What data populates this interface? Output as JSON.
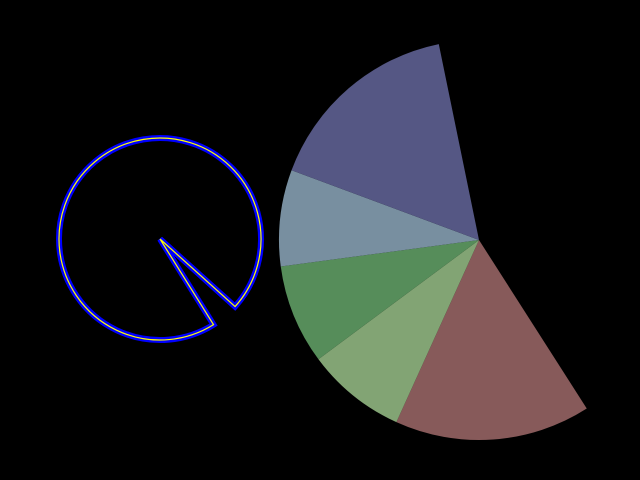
{
  "background": "#000000",
  "outline_wedge": {
    "stroke_outer": "#0000ff",
    "stroke_inner": "#ffff00",
    "gap_degrees": [
      42,
      58
    ]
  },
  "pie": {
    "slices": [
      {
        "name": "brown",
        "degrees": 57,
        "color": "#875a5a"
      },
      {
        "name": "light-green",
        "degrees": 29,
        "color": "#82a474"
      },
      {
        "name": "dark-green",
        "degrees": 29,
        "color": "#568d5a"
      },
      {
        "name": "blue-gray",
        "degrees": 28,
        "color": "#788fa0"
      },
      {
        "name": "purple",
        "degrees": 58,
        "color": "#555784"
      }
    ]
  }
}
